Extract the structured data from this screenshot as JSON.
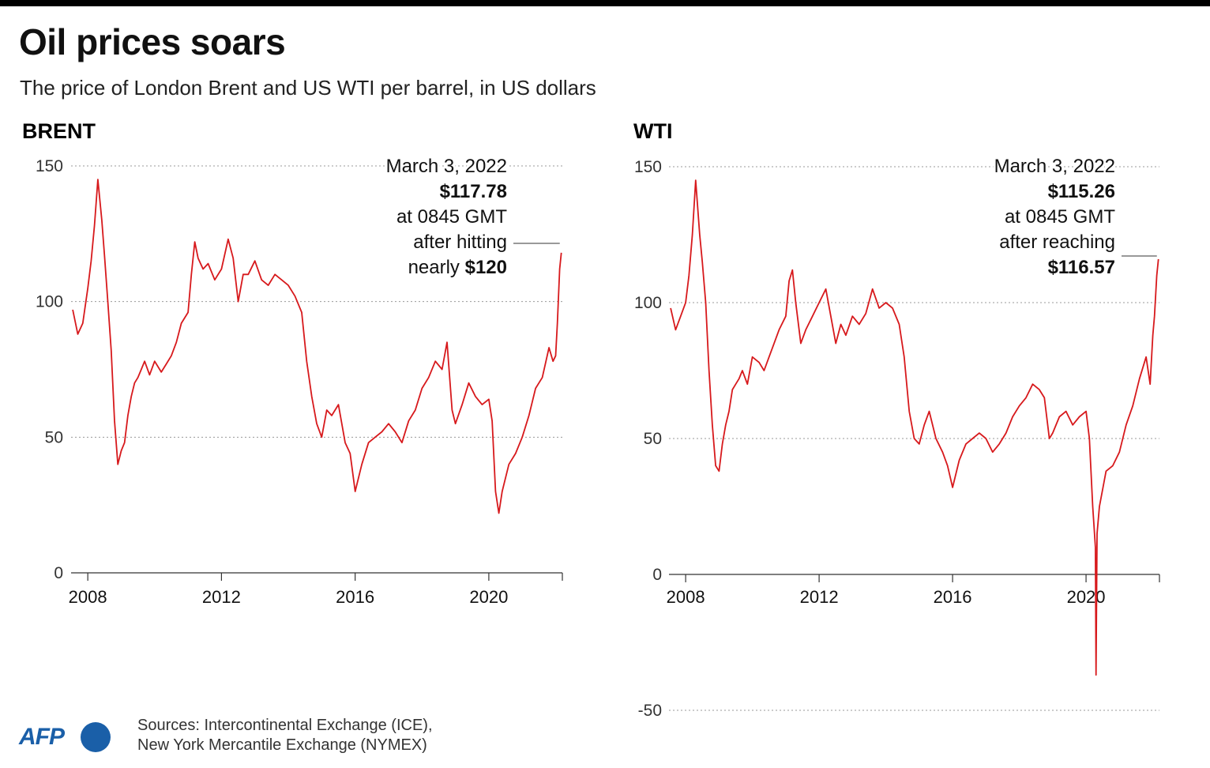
{
  "header": {
    "title": "Oil prices soars",
    "subtitle": "The price of London Brent and US WTI per barrel, in US dollars"
  },
  "footer": {
    "sources_line1": "Sources: Intercontinental Exchange (ICE),",
    "sources_line2": "New York Mercantile Exchange (NYMEX)",
    "logo_text": "AFP"
  },
  "colors": {
    "line": "#d7191c",
    "grid": "#999999",
    "text": "#222222",
    "brand": "#1a5fa8"
  },
  "chart_data": [
    {
      "type": "line",
      "title": "BRENT",
      "xlabel": "",
      "ylabel": "",
      "xlim": [
        2007.5,
        2022.2
      ],
      "ylim": [
        0,
        150
      ],
      "y_ticks": [
        "0",
        "50",
        "100",
        "150"
      ],
      "x_ticks": [
        "2008",
        "2012",
        "2016",
        "2020"
      ],
      "grid": true,
      "annotation": {
        "lines": [
          "March 3, 2022",
          "$117.78",
          "at 0845 GMT",
          "after hitting"
        ],
        "last_prefix": "nearly ",
        "last_bold": "$120"
      },
      "x": [
        2007.55,
        2007.7,
        2007.85,
        2008.0,
        2008.1,
        2008.2,
        2008.3,
        2008.42,
        2008.5,
        2008.6,
        2008.7,
        2008.8,
        2008.9,
        2009.0,
        2009.1,
        2009.2,
        2009.3,
        2009.4,
        2009.5,
        2009.6,
        2009.7,
        2009.85,
        2010.0,
        2010.2,
        2010.35,
        2010.5,
        2010.65,
        2010.8,
        2011.0,
        2011.1,
        2011.2,
        2011.3,
        2011.45,
        2011.6,
        2011.8,
        2012.0,
        2012.2,
        2012.35,
        2012.5,
        2012.65,
        2012.8,
        2013.0,
        2013.2,
        2013.4,
        2013.6,
        2013.8,
        2014.0,
        2014.2,
        2014.4,
        2014.55,
        2014.7,
        2014.85,
        2015.0,
        2015.15,
        2015.3,
        2015.5,
        2015.7,
        2015.85,
        2016.0,
        2016.2,
        2016.4,
        2016.6,
        2016.8,
        2017.0,
        2017.2,
        2017.4,
        2017.6,
        2017.8,
        2018.0,
        2018.2,
        2018.4,
        2018.6,
        2018.75,
        2018.9,
        2019.0,
        2019.2,
        2019.4,
        2019.6,
        2019.8,
        2020.0,
        2020.1,
        2020.2,
        2020.3,
        2020.4,
        2020.6,
        2020.8,
        2021.0,
        2021.2,
        2021.4,
        2021.6,
        2021.8,
        2021.92,
        2022.0,
        2022.05,
        2022.12,
        2022.17
      ],
      "values": [
        97,
        88,
        92,
        105,
        115,
        128,
        145,
        130,
        117,
        100,
        82,
        56,
        40,
        45,
        48,
        58,
        65,
        70,
        72,
        75,
        78,
        73,
        78,
        74,
        77,
        80,
        85,
        92,
        96,
        110,
        122,
        116,
        112,
        114,
        108,
        112,
        123,
        116,
        100,
        110,
        110,
        115,
        108,
        106,
        110,
        108,
        106,
        102,
        96,
        78,
        65,
        55,
        50,
        60,
        58,
        62,
        48,
        44,
        30,
        40,
        48,
        50,
        52,
        55,
        52,
        48,
        56,
        60,
        68,
        72,
        78,
        75,
        85,
        60,
        55,
        62,
        70,
        65,
        62,
        64,
        56,
        30,
        22,
        30,
        40,
        44,
        50,
        58,
        68,
        72,
        83,
        78,
        80,
        92,
        112,
        118
      ]
    },
    {
      "type": "line",
      "title": "WTI",
      "xlabel": "",
      "ylabel": "",
      "xlim": [
        2007.5,
        2022.2
      ],
      "ylim": [
        -50,
        150
      ],
      "y_ticks": [
        "-50",
        "0",
        "50",
        "100",
        "150"
      ],
      "x_ticks": [
        "2008",
        "2012",
        "2016",
        "2020"
      ],
      "grid": true,
      "annotation": {
        "lines": [
          "March 3, 2022",
          "$115.26",
          "at 0845 GMT",
          "after reaching"
        ],
        "last_prefix": "",
        "last_bold": "$116.57"
      },
      "x": [
        2007.55,
        2007.7,
        2007.85,
        2008.0,
        2008.1,
        2008.2,
        2008.3,
        2008.42,
        2008.5,
        2008.6,
        2008.7,
        2008.8,
        2008.9,
        2009.0,
        2009.1,
        2009.2,
        2009.3,
        2009.4,
        2009.5,
        2009.6,
        2009.7,
        2009.85,
        2010.0,
        2010.2,
        2010.35,
        2010.5,
        2010.65,
        2010.8,
        2011.0,
        2011.1,
        2011.2,
        2011.3,
        2011.45,
        2011.6,
        2011.8,
        2012.0,
        2012.2,
        2012.35,
        2012.5,
        2012.65,
        2012.8,
        2013.0,
        2013.2,
        2013.4,
        2013.6,
        2013.8,
        2014.0,
        2014.2,
        2014.4,
        2014.55,
        2014.7,
        2014.85,
        2015.0,
        2015.15,
        2015.3,
        2015.5,
        2015.7,
        2015.85,
        2016.0,
        2016.2,
        2016.4,
        2016.6,
        2016.8,
        2017.0,
        2017.2,
        2017.4,
        2017.6,
        2017.8,
        2018.0,
        2018.2,
        2018.4,
        2018.6,
        2018.75,
        2018.9,
        2019.0,
        2019.2,
        2019.4,
        2019.6,
        2019.8,
        2020.0,
        2020.1,
        2020.2,
        2020.28,
        2020.3,
        2020.33,
        2020.4,
        2020.6,
        2020.8,
        2021.0,
        2021.2,
        2021.4,
        2021.6,
        2021.8,
        2021.92,
        2022.0,
        2022.05,
        2022.12,
        2022.17
      ],
      "values": [
        98,
        90,
        95,
        100,
        110,
        125,
        145,
        125,
        115,
        100,
        75,
        55,
        40,
        38,
        48,
        55,
        60,
        68,
        70,
        72,
        75,
        70,
        80,
        78,
        75,
        80,
        85,
        90,
        95,
        108,
        112,
        100,
        85,
        90,
        95,
        100,
        105,
        95,
        85,
        92,
        88,
        95,
        92,
        96,
        105,
        98,
        100,
        98,
        92,
        80,
        60,
        50,
        48,
        55,
        60,
        50,
        45,
        40,
        32,
        42,
        48,
        50,
        52,
        50,
        45,
        48,
        52,
        58,
        62,
        65,
        70,
        68,
        65,
        50,
        52,
        58,
        60,
        55,
        58,
        60,
        50,
        25,
        10,
        -37,
        15,
        25,
        38,
        40,
        45,
        55,
        62,
        72,
        80,
        70,
        88,
        95,
        110,
        116
      ]
    }
  ]
}
